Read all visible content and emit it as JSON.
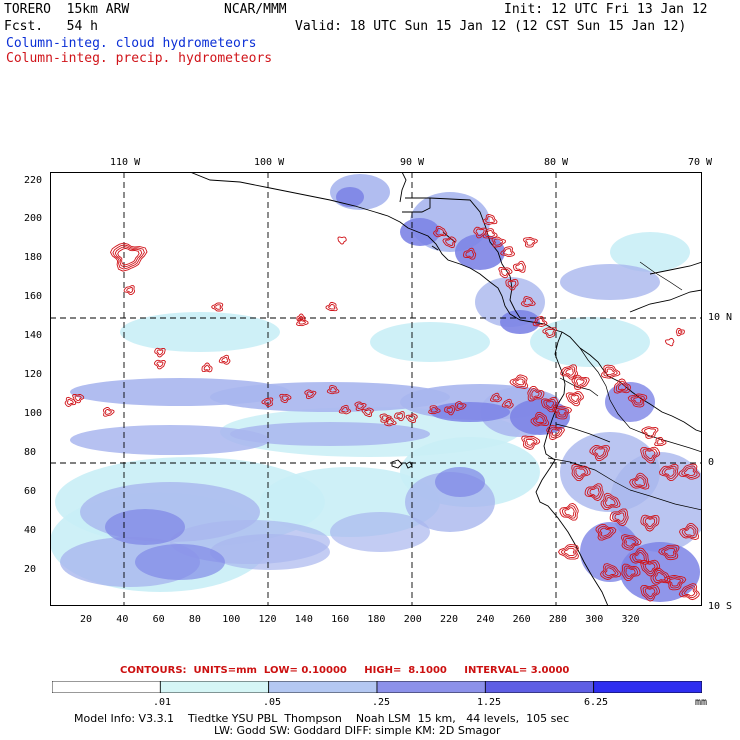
{
  "header": {
    "model": "TORERO  15km ARW",
    "forecast": "Fcst.   54 h",
    "center": "NCAR/MMM",
    "init": "Init: 12 UTC Fri 13 Jan 12",
    "valid": "Valid: 18 UTC Sun 15 Jan 12 (12 CST Sun 15 Jan 12)",
    "field1": "Column-integ. cloud hydrometeors",
    "field2": "Column-integ. precip. hydrometeors"
  },
  "map": {
    "top_lon_labels": [
      "110 W",
      "100 W",
      "90 W",
      "80 W",
      "70 W"
    ],
    "right_lat_labels": [
      "10 N",
      "0",
      "10 S"
    ],
    "y_ticks": [
      "220",
      "200",
      "180",
      "160",
      "140",
      "120",
      "100",
      "80",
      "60",
      "40",
      "20"
    ],
    "x_ticks": [
      "20",
      "40",
      "60",
      "80",
      "100",
      "120",
      "140",
      "160",
      "180",
      "200",
      "220",
      "240",
      "260",
      "280",
      "300",
      "320"
    ]
  },
  "contours_line": "CONTOURS:  UNITS=mm  LOW= 0.10000     HIGH=  8.1000     INTERVAL= 3.0000",
  "colorbar": {
    "labels": [
      ".01",
      ".05",
      ".25",
      "1.25",
      "6.25"
    ],
    "unit": "mm",
    "colors": [
      "#ffffff",
      "#d6f6f6",
      "#b4c8f2",
      "#8c91ea",
      "#5e5ee4",
      "#2e2ef0"
    ]
  },
  "footer": {
    "line1": "Model Info: V3.3.1    Tiedtke YSU PBL  Thompson    Noah LSM  15 km,   44 levels,  105 sec",
    "line2": "LW: Godd SW: Goddard DIFF: simple KM: 2D Smagor"
  },
  "colors": {
    "cloud_light": "#c9eef6",
    "cloud_mid": "#a9b6ee",
    "cloud_dark": "#7d84e6",
    "precip": "#d0141a"
  }
}
